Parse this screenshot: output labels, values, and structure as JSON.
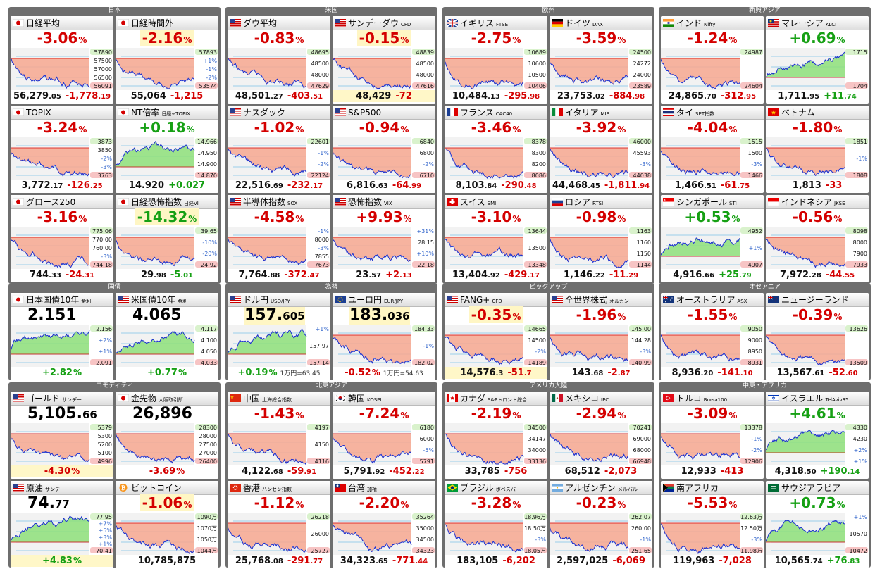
{
  "colors": {
    "up": "#16a014",
    "down": "#d40000"
  },
  "panels": [
    {
      "title": "日本",
      "tiles": [
        {
          "name": "日経平均",
          "flag": "jp",
          "chg": "-3.06",
          "chg_pct": "%",
          "val": "56,279",
          "val_dec": ".05",
          "diff": "-1,778",
          "diff_dec": ".19",
          "dir": "dn",
          "prefix": "",
          "labels": [
            "57890",
            "57500",
            "57000",
            "56500",
            "56091"
          ]
        },
        {
          "name": "日経時間外",
          "flag": "jp",
          "chg": "-2.16",
          "chg_pct": "%",
          "val": "55,064",
          "val_dec": "",
          "diff": "-1,215",
          "diff_dec": "",
          "dir": "dn",
          "hl_chg": true,
          "labels": [
            "57893",
            "+1%",
            "-1%",
            "-2%",
            "53574"
          ]
        },
        {
          "name": "TOPIX",
          "flag": "jp",
          "chg": "-3.24",
          "chg_pct": "%",
          "val": "3,772",
          "val_dec": ".17",
          "diff": "-126",
          "diff_dec": ".25",
          "dir": "dn",
          "labels": [
            "3873",
            "3850",
            "-2%",
            "-3%",
            "3763"
          ]
        },
        {
          "name": "NT倍率",
          "sub": "日経÷TOPIX",
          "flag": "jp",
          "chg": "+0.18",
          "chg_pct": "%",
          "val": "14.920",
          "val_dec": "",
          "diff": "+0.027",
          "diff_dec": "",
          "dir": "up",
          "labels": [
            "14.966",
            "14.950",
            "14.900",
            "14.870"
          ]
        },
        {
          "name": "グロース250",
          "flag": "jp",
          "chg": "-3.16",
          "chg_pct": "%",
          "val": "744",
          "val_dec": ".33",
          "diff": "-24",
          "diff_dec": ".31",
          "dir": "dn",
          "labels": [
            "775.06",
            "770.00",
            "760.00",
            "-3%",
            "744.18"
          ]
        },
        {
          "name": "日経恐怖指数",
          "sub": "日経VI",
          "flag": "jp",
          "chg": "-14.32",
          "chg_pct": "%",
          "val": "29",
          "val_dec": ".98",
          "diff": "-5",
          "diff_dec": ".01",
          "dir": "dn",
          "chg_dir": "up",
          "diff_dir": "up",
          "hl_chg": true,
          "labels": [
            "39.65",
            "-10%",
            "-20%",
            "24.92"
          ]
        }
      ]
    },
    {
      "title": "米国",
      "tiles": [
        {
          "name": "ダウ平均",
          "flag": "us",
          "chg": "-0.83",
          "chg_pct": "%",
          "val": "48,501",
          "val_dec": ".27",
          "diff": "-403",
          "diff_dec": ".51",
          "dir": "dn",
          "labels": [
            "48695",
            "48500",
            "48000",
            "47629"
          ]
        },
        {
          "name": "サンデーダウ",
          "sub": "CFD",
          "flag": "us",
          "chg": "-0.15",
          "chg_pct": "%",
          "val": "48,429",
          "val_dec": "",
          "diff": "-72",
          "diff_dec": "",
          "dir": "dn",
          "hl_chg": true,
          "hl_btm": true,
          "labels": [
            "48839",
            "48500",
            "48000",
            "47616"
          ]
        },
        {
          "name": "ナスダック",
          "flag": "us",
          "chg": "-1.02",
          "chg_pct": "%",
          "val": "22,516",
          "val_dec": ".69",
          "diff": "-232",
          "diff_dec": ".17",
          "dir": "dn",
          "labels": [
            "22601",
            "-1%",
            "-2%",
            "22124"
          ]
        },
        {
          "name": "S&P500",
          "flag": "us",
          "chg": "-0.94",
          "chg_pct": "%",
          "val": "6,816",
          "val_dec": ".63",
          "diff": "-64",
          "diff_dec": ".99",
          "dir": "dn",
          "labels": [
            "6840",
            "6800",
            "-2%",
            "6710"
          ]
        },
        {
          "name": "半導体指数",
          "sub": "SOX",
          "flag": "us",
          "chg": "-4.58",
          "chg_pct": "%",
          "val": "7,764",
          "val_dec": ".88",
          "diff": "-372",
          "diff_dec": ".47",
          "dir": "dn",
          "labels": [
            "-1%",
            "8000",
            "-3%",
            "7855",
            "7673"
          ]
        },
        {
          "name": "恐怖指数",
          "sub": "VIX",
          "flag": "us",
          "chg": "+9.93",
          "chg_pct": "%",
          "val": "23",
          "val_dec": ".57",
          "diff": "+2",
          "diff_dec": ".13",
          "dir": "dn",
          "chg_dir": "dn",
          "diff_dir": "dn",
          "labels": [
            "+31%",
            "28.15",
            "+10%",
            "22.18"
          ]
        }
      ]
    },
    {
      "title": "欧州",
      "tiles": [
        {
          "name": "イギリス",
          "sub": "FTSE",
          "flag": "gb",
          "chg": "-2.75",
          "chg_pct": "%",
          "val": "10,484",
          "val_dec": ".13",
          "diff": "-295",
          "diff_dec": ".98",
          "dir": "dn",
          "labels": [
            "10689",
            "10600",
            "10500",
            "10406"
          ]
        },
        {
          "name": "ドイツ",
          "sub": "DAX",
          "flag": "de",
          "chg": "-3.59",
          "chg_pct": "%",
          "val": "23,753",
          "val_dec": ".02",
          "diff": "-884",
          "diff_dec": ".98",
          "dir": "dn",
          "labels": [
            "24500",
            "24272",
            "24000",
            "23589"
          ]
        },
        {
          "name": "フランス",
          "sub": "CAC40",
          "flag": "fr",
          "chg": "-3.46",
          "chg_pct": "%",
          "val": "8,103",
          "val_dec": ".84",
          "diff": "-290",
          "diff_dec": ".48",
          "dir": "dn",
          "labels": [
            "8378",
            "8300",
            "8200",
            "8086"
          ]
        },
        {
          "name": "イタリア",
          "sub": "MIB",
          "flag": "it",
          "chg": "-3.92",
          "chg_pct": "%",
          "val": "44,468",
          "val_dec": ".45",
          "diff": "-1,811",
          "diff_dec": ".94",
          "dir": "dn",
          "labels": [
            "46000",
            "45593",
            "-3%",
            "44038"
          ]
        },
        {
          "name": "スイス",
          "sub": "SMI",
          "flag": "ch",
          "chg": "-3.10",
          "chg_pct": "%",
          "val": "13,404",
          "val_dec": ".92",
          "diff": "-429",
          "diff_dec": ".17",
          "dir": "dn",
          "labels": [
            "13644",
            "13500",
            "13348"
          ]
        },
        {
          "name": "ロシア",
          "sub": "RTSI",
          "flag": "ru",
          "chg": "-0.98",
          "chg_pct": "%",
          "val": "1,146",
          "val_dec": ".22",
          "diff": "-11",
          "diff_dec": ".29",
          "dir": "dn",
          "labels": [
            "1163",
            "1160",
            "1150",
            "1144"
          ]
        }
      ]
    },
    {
      "title": "新興アジア",
      "tiles": [
        {
          "name": "インド",
          "sub": "Nifty",
          "flag": "in",
          "chg": "-1.24",
          "chg_pct": "%",
          "val": "24,865",
          "val_dec": ".70",
          "diff": "-312",
          "diff_dec": ".95",
          "dir": "dn",
          "labels": [
            "24987",
            "24604"
          ]
        },
        {
          "name": "マレーシア",
          "sub": "KLCI",
          "flag": "my",
          "chg": "+0.69",
          "chg_pct": "%",
          "val": "1,711",
          "val_dec": ".95",
          "diff": "+11",
          "diff_dec": ".74",
          "dir": "up",
          "labels": [
            "1715",
            "1704"
          ]
        },
        {
          "name": "タイ",
          "sub": "SET指数",
          "flag": "th",
          "chg": "-4.04",
          "chg_pct": "%",
          "val": "1,466",
          "val_dec": ".51",
          "diff": "-61",
          "diff_dec": ".75",
          "dir": "dn",
          "labels": [
            "1515",
            "1500",
            "-3%",
            "1466"
          ]
        },
        {
          "name": "ベトナム",
          "flag": "vn",
          "chg": "-1.80",
          "chg_pct": "%",
          "val": "1,813",
          "val_dec": "",
          "diff": "-33",
          "diff_dec": "",
          "dir": "dn",
          "labels": [
            "1851",
            "-1%",
            "1808"
          ]
        },
        {
          "name": "シンガポール",
          "sub": "STI",
          "flag": "sg",
          "chg": "+0.53",
          "chg_pct": "%",
          "val": "4,916",
          "val_dec": ".66",
          "diff": "+25",
          "diff_dec": ".79",
          "dir": "up",
          "labels": [
            "4952",
            "+1%",
            "4907"
          ]
        },
        {
          "name": "インドネシア",
          "sub": "JKSE",
          "flag": "id",
          "chg": "-0.56",
          "chg_pct": "%",
          "val": "7,972",
          "val_dec": ".28",
          "diff": "-44",
          "diff_dec": ".55",
          "dir": "dn",
          "labels": [
            "8098",
            "8000",
            "7900",
            "7933"
          ]
        }
      ]
    },
    {
      "title": "国債",
      "tiles": [
        {
          "name": "日本国債10年",
          "sub": "金利",
          "flag": "jp",
          "big": "2.151",
          "big_dec": "",
          "diff": "+2.82",
          "diff_pct": "%",
          "dir": "up",
          "labels": [
            "2.156",
            "+2%",
            "+1%",
            "2.091"
          ]
        },
        {
          "name": "米国債10年",
          "sub": "金利",
          "flag": "us",
          "big": "4.065",
          "big_dec": "",
          "diff": "+0.77",
          "diff_pct": "%",
          "dir": "up",
          "labels": [
            "4.117",
            "4.100",
            "4.050",
            "4.033"
          ]
        }
      ]
    },
    {
      "title": "為替",
      "tiles": [
        {
          "name": "ドル円",
          "sub": "USD/JPY",
          "flag": "us",
          "big": "157.",
          "big_dec": "605",
          "diff": "+0.19",
          "diff_pct": "%",
          "extra": "1万円=63.45",
          "dir": "up",
          "hl_big": true,
          "labels": [
            "+1%",
            "157.97",
            "157.14"
          ]
        },
        {
          "name": "ユーロ円",
          "sub": "EUR/JPY",
          "flag": "eu",
          "big": "183.",
          "big_dec": "036",
          "diff": "-0.52",
          "diff_pct": "%",
          "extra": "1万円=54.63",
          "dir": "dn",
          "hl_big": true,
          "labels": [
            "184.33",
            "-1%",
            "182.02"
          ]
        }
      ]
    },
    {
      "title": "ピックアップ",
      "tiles": [
        {
          "name": "FANG+",
          "sub": "CFD",
          "flag": "us",
          "chg": "-0.35",
          "chg_pct": "%",
          "val": "14,576",
          "val_dec": ".3",
          "diff": "-51",
          "diff_dec": ".7",
          "dir": "dn",
          "hl_chg": true,
          "hl_btm": true,
          "labels": [
            "14665",
            "14500",
            "-2%",
            "14189"
          ]
        },
        {
          "name": "全世界株式",
          "sub": "オルカン",
          "flag": "us",
          "chg": "-1.96",
          "chg_pct": "%",
          "val": "143",
          "val_dec": ".68",
          "diff": "-2",
          "diff_dec": ".87",
          "dir": "dn",
          "labels": [
            "145.00",
            "144.28",
            "-3%",
            "140.99"
          ]
        }
      ]
    },
    {
      "title": "オセアニア",
      "tiles": [
        {
          "name": "オーストラリア",
          "sub": "ASX",
          "flag": "au",
          "chg": "-1.55",
          "chg_pct": "%",
          "val": "8,936",
          "val_dec": ".20",
          "diff": "-141",
          "diff_dec": ".10",
          "dir": "dn",
          "labels": [
            "9050",
            "9000",
            "8950",
            "8931"
          ]
        },
        {
          "name": "ニュージーランド",
          "flag": "nz",
          "chg": "-0.39",
          "chg_pct": "%",
          "val": "13,567",
          "val_dec": ".61",
          "diff": "-52",
          "diff_dec": ".60",
          "dir": "dn",
          "labels": [
            "13626",
            "13509"
          ]
        }
      ]
    },
    {
      "title": "コモディティ",
      "tiles": [
        {
          "name": "ゴールド",
          "sub": "サンデー",
          "flag": "us",
          "big": "5,105.",
          "big_dec": "66",
          "diff": "-4.30",
          "diff_pct": "%",
          "dir": "dn",
          "hl_btm": true,
          "labels": [
            "5379",
            "5300",
            "5200",
            "5100",
            "4996"
          ]
        },
        {
          "name": "金先物",
          "sub": "大阪取引所",
          "flag": "jp",
          "big": "26,896",
          "big_dec": "",
          "diff": "-3.69",
          "diff_pct": "%",
          "dir": "dn",
          "labels": [
            "28300",
            "28000",
            "27500",
            "27000",
            "26400"
          ]
        },
        {
          "name": "原油",
          "sub": "サンデー",
          "flag": "us",
          "big": "74.",
          "big_dec": "77",
          "diff": "+4.83",
          "diff_pct": "%",
          "dir": "up",
          "hl_btm": true,
          "labels": [
            "77.95",
            "+7%",
            "+5%",
            "+3%",
            "+1%",
            "70.41"
          ]
        },
        {
          "name": "ビットコイン",
          "flag": "btc",
          "chg": "-1.06",
          "chg_pct": "%",
          "val": "10,785,875",
          "val_dec": "",
          "diff": "",
          "diff_dec": "",
          "dir": "dn",
          "hl_chg": true,
          "labels": [
            "1090万",
            "1070万",
            "1050万",
            "1044万"
          ]
        }
      ]
    },
    {
      "title": "北東アジア",
      "tiles": [
        {
          "name": "中国",
          "sub": "上海総合指数",
          "flag": "cn",
          "chg": "-1.43",
          "chg_pct": "%",
          "val": "4,122",
          "val_dec": ".68",
          "diff": "-59",
          "diff_dec": ".91",
          "dir": "dn",
          "labels": [
            "4197",
            "4150",
            "4116"
          ]
        },
        {
          "name": "韓国",
          "sub": "KOSPI",
          "flag": "kr",
          "chg": "-7.24",
          "chg_pct": "%",
          "val": "5,791",
          "val_dec": ".92",
          "diff": "-452",
          "diff_dec": ".22",
          "dir": "dn",
          "labels": [
            "6180",
            "6000",
            "-5%",
            "5791"
          ]
        },
        {
          "name": "香港",
          "sub": "ハンセン指数",
          "flag": "hk",
          "chg": "-1.12",
          "chg_pct": "%",
          "val": "25,768",
          "val_dec": ".08",
          "diff": "-291",
          "diff_dec": ".77",
          "dir": "dn",
          "labels": [
            "26218",
            "26000",
            "25727"
          ]
        },
        {
          "name": "台湾",
          "sub": "加権",
          "flag": "tw",
          "chg": "-2.20",
          "chg_pct": "%",
          "val": "34,323",
          "val_dec": ".65",
          "diff": "-771",
          "diff_dec": ".44",
          "dir": "dn",
          "labels": [
            "35264",
            "35000",
            "34500",
            "34323"
          ]
        }
      ]
    },
    {
      "title": "アメリカ大陸",
      "tiles": [
        {
          "name": "カナダ",
          "sub": "S&Pトロント総合",
          "flag": "ca",
          "chg": "-2.19",
          "chg_pct": "%",
          "val": "33,785",
          "val_dec": "",
          "diff": "-756",
          "diff_dec": "",
          "dir": "dn",
          "labels": [
            "34500",
            "34147",
            "34000",
            "33136"
          ]
        },
        {
          "name": "メキシコ",
          "sub": "IPC",
          "flag": "mx",
          "chg": "-2.94",
          "chg_pct": "%",
          "val": "68,512",
          "val_dec": "",
          "diff": "-2,073",
          "diff_dec": "",
          "dir": "dn",
          "labels": [
            "70241",
            "69000",
            "68000",
            "66948"
          ]
        },
        {
          "name": "ブラジル",
          "sub": "ボベスパ",
          "flag": "br",
          "chg": "-3.28",
          "chg_pct": "%",
          "val": "183,105",
          "val_dec": "",
          "diff": "-6,202",
          "diff_dec": "",
          "dir": "dn",
          "labels": [
            "18.96万",
            "18.50万",
            "-3%",
            "18.05万"
          ]
        },
        {
          "name": "アルゼンチン",
          "sub": "メルバル",
          "flag": "ar",
          "chg": "-0.23",
          "chg_pct": "%",
          "val": "2,597,025",
          "val_dec": "",
          "diff": "-6,069",
          "diff_dec": "",
          "dir": "dn",
          "labels": [
            "262.07",
            "260.00",
            "-1%",
            "251.65"
          ]
        }
      ]
    },
    {
      "title": "中東・アフリカ",
      "tiles": [
        {
          "name": "トルコ",
          "sub": "Borsa100",
          "flag": "tr",
          "chg": "-3.09",
          "chg_pct": "%",
          "val": "12,933",
          "val_dec": "",
          "diff": "-413",
          "diff_dec": "",
          "dir": "dn",
          "labels": [
            "13378",
            "-1%",
            "-2%",
            "12906"
          ]
        },
        {
          "name": "イスラエル",
          "sub": "TelAviv35",
          "flag": "il",
          "chg": "+4.61",
          "chg_pct": "%",
          "val": "4,318",
          "val_dec": ".50",
          "diff": "+190",
          "diff_dec": ".14",
          "dir": "up",
          "labels": [
            "4330",
            "4230",
            "+2%",
            "+1%"
          ]
        },
        {
          "name": "南アフリカ",
          "flag": "za",
          "chg": "-5.53",
          "chg_pct": "%",
          "val": "119,963",
          "val_dec": "",
          "diff": "-7,028",
          "diff_dec": "",
          "dir": "dn",
          "labels": [
            "12.63万",
            "12.50万",
            "-3%",
            "11.98万"
          ]
        },
        {
          "name": "サウジアラビア",
          "flag": "sa",
          "chg": "+0.73",
          "chg_pct": "%",
          "val": "10,565",
          "val_dec": ".74",
          "diff": "+76",
          "diff_dec": ".83",
          "dir": "up",
          "labels": [
            "+1%",
            "10570",
            "10472"
          ]
        }
      ]
    }
  ]
}
